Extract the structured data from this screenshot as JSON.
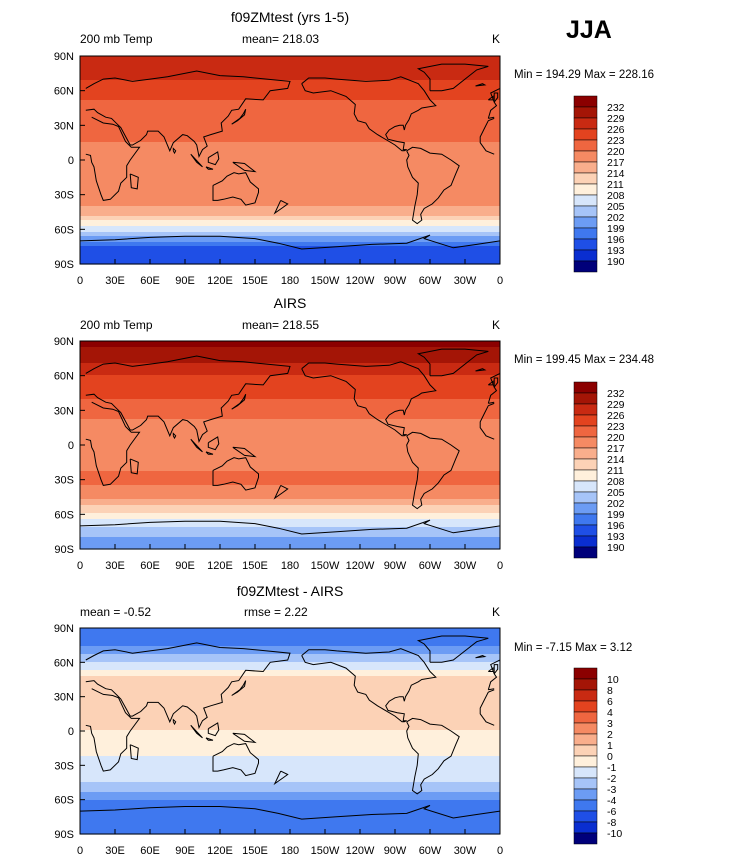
{
  "season": "JJA",
  "colors": {
    "abs_scale": [
      "#00007a",
      "#0a2ed0",
      "#1f4fe6",
      "#3f78ef",
      "#6c9cf4",
      "#a6c4f8",
      "#d7e6fb",
      "#fff0dc",
      "#fcd2b6",
      "#f9ae8c",
      "#f58a63",
      "#ef6640",
      "#e3431f",
      "#c92a12",
      "#a41506",
      "#8b0000"
    ],
    "diff_scale": [
      "#00007a",
      "#0a2ed0",
      "#1f4fe6",
      "#3f78ef",
      "#6c9cf4",
      "#a6c4f8",
      "#d7e6fb",
      "#fff0dc",
      "#fcd2b6",
      "#f9ae8c",
      "#f58a63",
      "#ef6640",
      "#e3431f",
      "#c92a12",
      "#a41506",
      "#8b0000"
    ]
  },
  "chart_data": [
    {
      "type": "heatmap",
      "title": "f09ZMtest (yrs 1-5)",
      "left_label": "200 mb Temp",
      "center_label": "mean= 218.03",
      "right_label": "K",
      "stats": "Min = 194.29 Max = 228.16",
      "y_ticks": [
        "90N",
        "60N",
        "30N",
        "0",
        "30S",
        "60S",
        "90S"
      ],
      "x_ticks": [
        "0",
        "30E",
        "60E",
        "90E",
        "120E",
        "150E",
        "180",
        "150W",
        "120W",
        "90W",
        "60W",
        "30W",
        "0"
      ],
      "colorbar_levels": [
        "232",
        "229",
        "226",
        "223",
        "220",
        "217",
        "214",
        "211",
        "208",
        "205",
        "202",
        "199",
        "196",
        "193",
        "190"
      ],
      "zonal_profile": {
        "lat": [
          90,
          75,
          60,
          45,
          30,
          15,
          0,
          -15,
          -30,
          -45,
          -60,
          -75,
          -90
        ],
        "value": [
          228,
          227,
          224,
          222,
          222,
          220,
          218,
          218,
          219,
          216,
          206,
          196,
          194
        ]
      }
    },
    {
      "type": "heatmap",
      "title": "AIRS",
      "left_label": "200 mb Temp",
      "center_label": "mean= 218.55",
      "right_label": "K",
      "stats": "Min = 199.45 Max = 234.48",
      "y_ticks": [
        "90N",
        "60N",
        "30N",
        "0",
        "30S",
        "60S",
        "90S"
      ],
      "x_ticks": [
        "0",
        "30E",
        "60E",
        "90E",
        "120E",
        "150E",
        "180",
        "150W",
        "120W",
        "90W",
        "60W",
        "30W",
        "0"
      ],
      "colorbar_levels": [
        "232",
        "229",
        "226",
        "223",
        "220",
        "217",
        "214",
        "211",
        "208",
        "205",
        "202",
        "199",
        "196",
        "193",
        "190"
      ],
      "zonal_profile": {
        "lat": [
          90,
          75,
          60,
          45,
          30,
          15,
          0,
          -15,
          -30,
          -45,
          -60,
          -75,
          -90
        ],
        "value": [
          233,
          230,
          226,
          224,
          221,
          219,
          218,
          219,
          221,
          218,
          210,
          203,
          200
        ]
      }
    },
    {
      "type": "heatmap",
      "title": "f09ZMtest - AIRS",
      "left_label": "mean = -0.52",
      "center_label": "rmse = 2.22",
      "right_label": "K",
      "stats": "Min = -7.15 Max = 3.12",
      "y_ticks": [
        "90N",
        "60N",
        "30N",
        "0",
        "30S",
        "60S",
        "90S"
      ],
      "x_ticks": [
        "0",
        "30E",
        "60E",
        "90E",
        "120E",
        "150E",
        "180",
        "150W",
        "120W",
        "90W",
        "60W",
        "30W",
        "0"
      ],
      "colorbar_levels": [
        "10",
        "8",
        "6",
        "4",
        "3",
        "2",
        "1",
        "0",
        "-1",
        "-2",
        "-3",
        "-4",
        "-6",
        "-8",
        "-10"
      ],
      "zonal_profile": {
        "lat": [
          90,
          75,
          60,
          45,
          30,
          15,
          0,
          -15,
          -30,
          -45,
          -60,
          -75,
          -90
        ],
        "value": [
          -5,
          -4,
          -2,
          0.5,
          1,
          1,
          0,
          -0.5,
          -1.5,
          -2,
          -4,
          -5,
          -5
        ]
      }
    }
  ]
}
